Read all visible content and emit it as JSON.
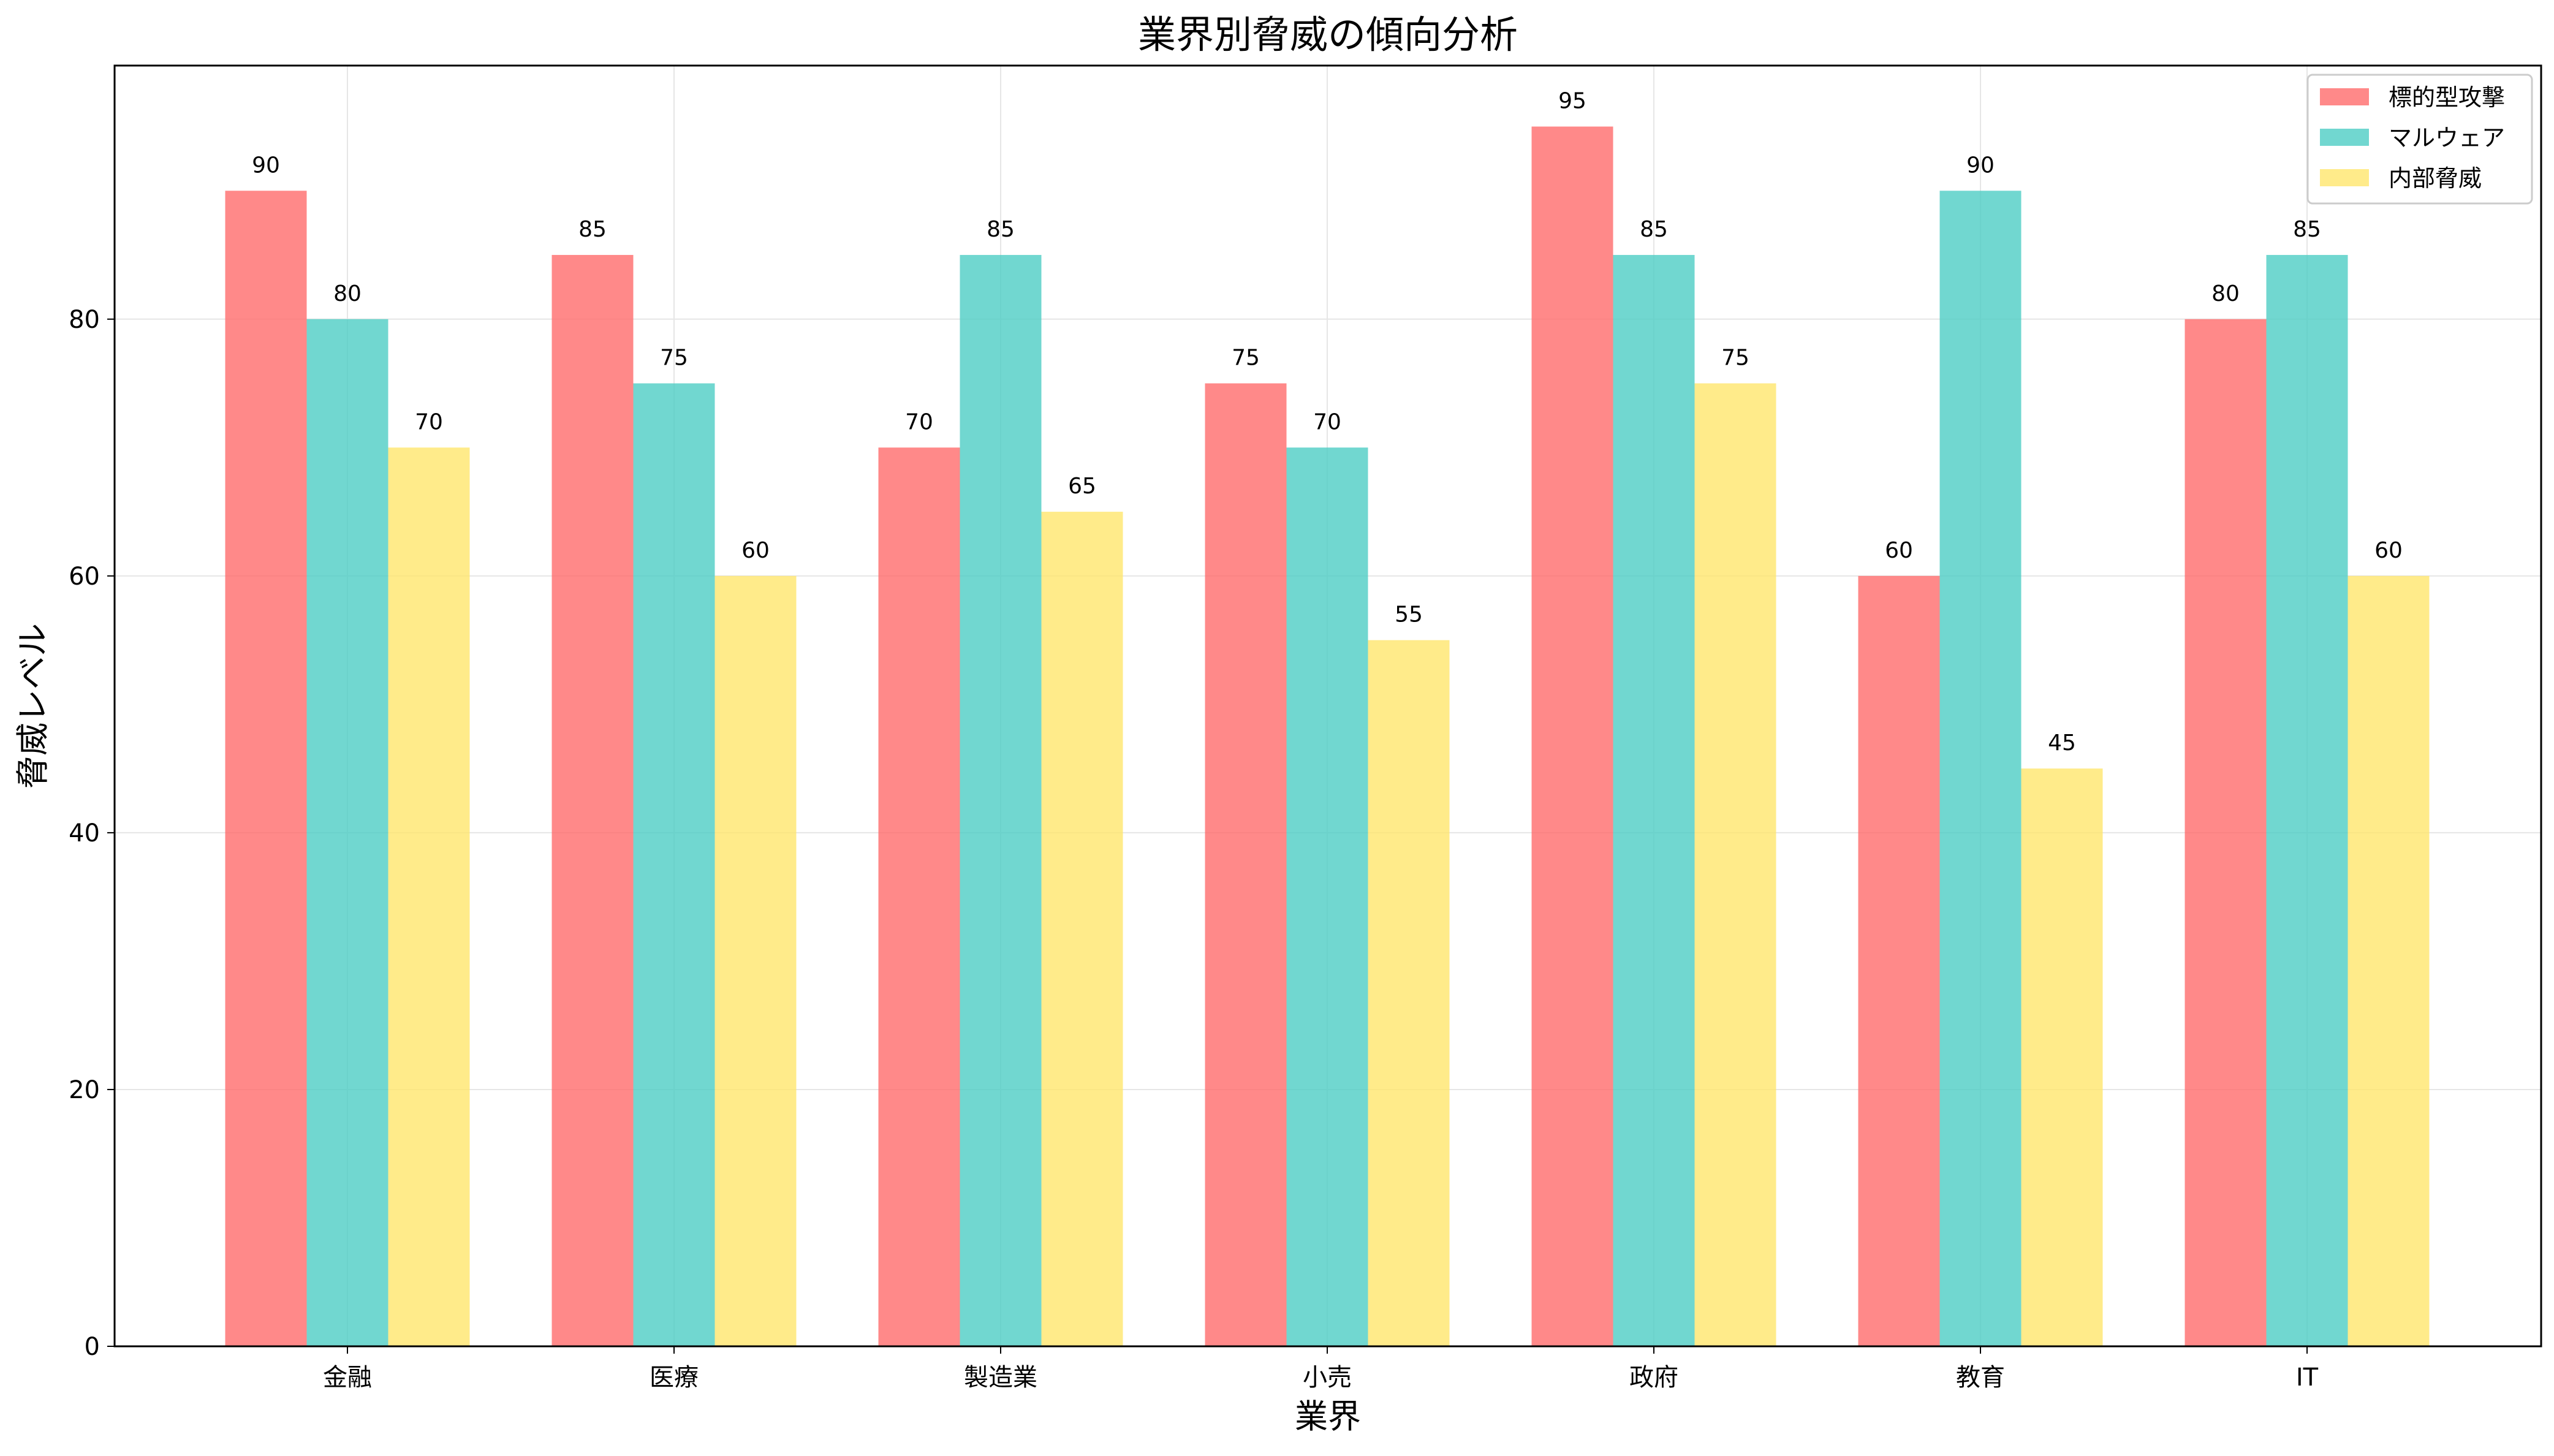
{
  "chart_data": {
    "type": "bar",
    "title": "業界別脅威の傾向分析",
    "xlabel": "業界",
    "ylabel": "脅威レベル",
    "categories": [
      "金融",
      "医療",
      "製造業",
      "小売",
      "政府",
      "教育",
      "IT"
    ],
    "series": [
      {
        "name": "標的型攻撃",
        "color": "#ff6b6b",
        "values": [
          90,
          85,
          70,
          75,
          95,
          60,
          80
        ]
      },
      {
        "name": "マルウェア",
        "color": "#4ecdc4",
        "values": [
          80,
          75,
          85,
          70,
          85,
          90,
          85
        ]
      },
      {
        "name": "内部脅威",
        "color": "#ffe66d",
        "values": [
          70,
          60,
          65,
          55,
          75,
          45,
          60
        ]
      }
    ],
    "ylim": [
      0,
      99.75
    ],
    "yticks": [
      0,
      20,
      40,
      60,
      80
    ],
    "grid": true,
    "legend_position": "top-right"
  }
}
